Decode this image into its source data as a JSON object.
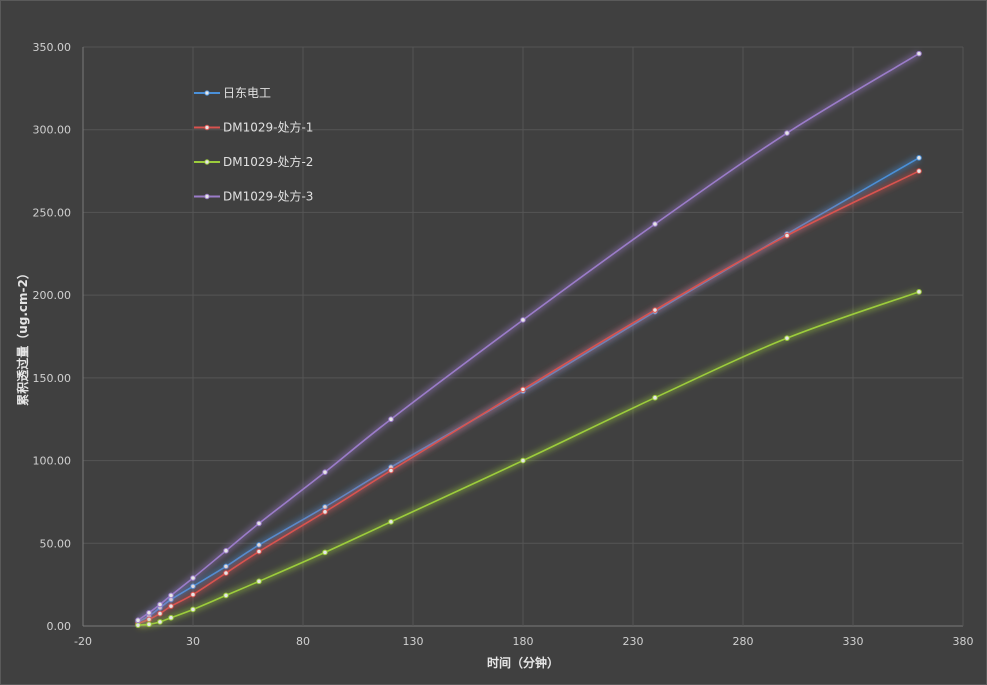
{
  "chart_data": {
    "type": "line",
    "xlabel": "时间（分钟）",
    "ylabel": "累积透过量（ug.cm-2）",
    "xlim": [
      -20,
      380
    ],
    "ylim": [
      0,
      350
    ],
    "x_ticks": [
      -20,
      30,
      80,
      130,
      180,
      230,
      280,
      330,
      380
    ],
    "x_tick_labels": [
      "-20",
      "30",
      "80",
      "130",
      "180",
      "230",
      "280",
      "330",
      "380"
    ],
    "y_ticks": [
      0,
      50,
      100,
      150,
      200,
      250,
      300,
      350
    ],
    "y_tick_labels": [
      "0.00",
      "50.00",
      "100.00",
      "150.00",
      "200.00",
      "250.00",
      "300.00",
      "350.00"
    ],
    "grid": true,
    "legend_position": "top-left",
    "x": [
      5,
      10,
      15,
      20,
      30,
      45,
      60,
      90,
      120,
      180,
      240,
      300,
      360
    ],
    "series": [
      {
        "name": "日东电工",
        "color": "#4a90d9",
        "values": [
          2.5,
          6.0,
          11.0,
          16.0,
          24.0,
          36.0,
          49.0,
          72.0,
          96.0,
          142.0,
          190.0,
          237.0,
          283.0
        ]
      },
      {
        "name": "DM1029-处方-1",
        "color": "#d9534f",
        "values": [
          1.5,
          4.0,
          7.5,
          12.0,
          19.0,
          32.0,
          45.0,
          69.0,
          94.0,
          143.0,
          191.0,
          236.0,
          275.0
        ]
      },
      {
        "name": "DM1029-处方-2",
        "color": "#9ccc3c",
        "values": [
          0.5,
          1.0,
          2.5,
          5.0,
          10.0,
          18.5,
          27.0,
          44.5,
          63.0,
          100.0,
          138.0,
          174.0,
          202.0
        ]
      },
      {
        "name": "DM1029-处方-3",
        "color": "#9b7cc9",
        "values": [
          3.5,
          8.0,
          13.0,
          18.5,
          29.0,
          45.5,
          62.0,
          93.0,
          125.0,
          185.0,
          243.0,
          298.0,
          346.0
        ]
      }
    ]
  }
}
